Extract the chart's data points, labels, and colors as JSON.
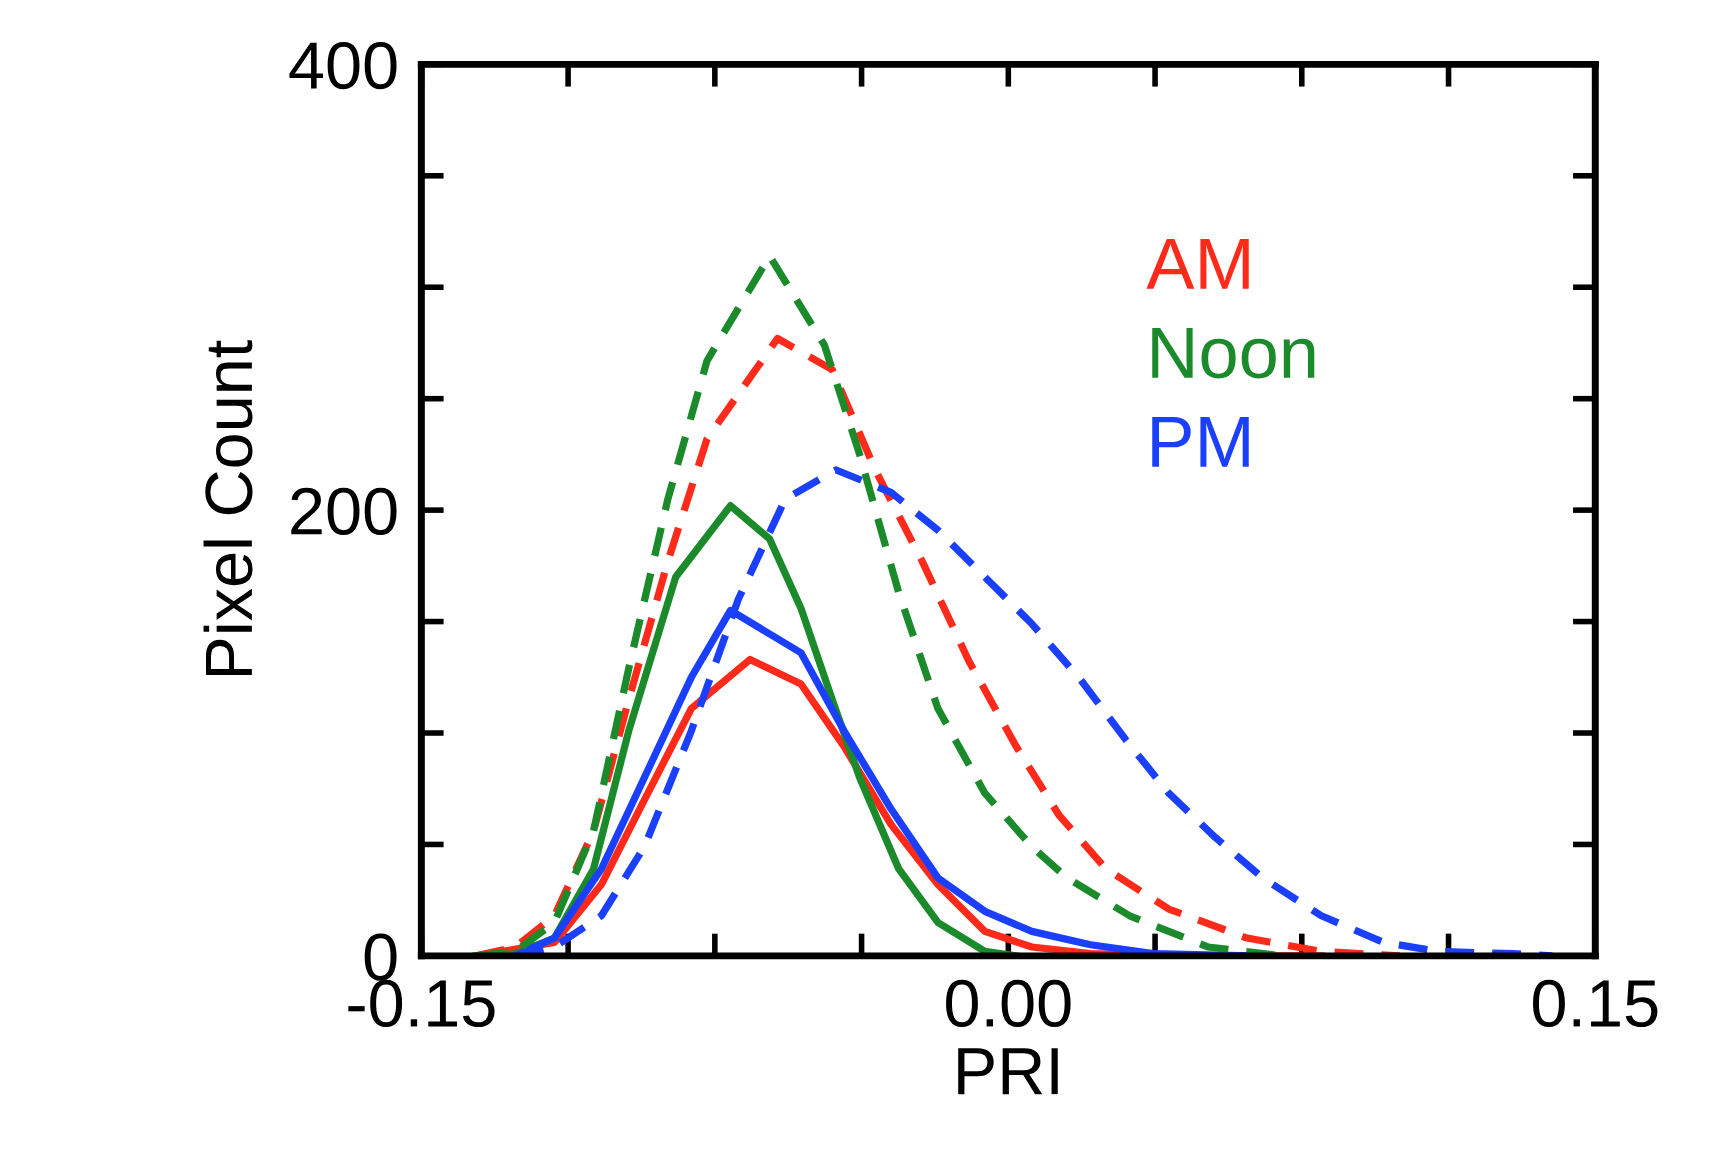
{
  "chart_data": {
    "type": "line",
    "xlabel": "PRI",
    "ylabel": "Pixel Count",
    "legend": "top right",
    "grid": false,
    "xlim": [
      -0.15,
      0.15
    ],
    "ylim": [
      0,
      400
    ],
    "xticks": [
      {
        "value": -0.15,
        "label": "-0.15"
      },
      {
        "value": -0.1125,
        "label": null
      },
      {
        "value": -0.075,
        "label": null
      },
      {
        "value": -0.0375,
        "label": null
      },
      {
        "value": 0,
        "label": "0.00"
      },
      {
        "value": 0.0375,
        "label": null
      },
      {
        "value": 0.075,
        "label": null
      },
      {
        "value": 0.1125,
        "label": null
      },
      {
        "value": 0.15,
        "label": "0.15"
      }
    ],
    "yticks": [
      0,
      {
        "value": 50,
        "label": null
      },
      {
        "value": 100,
        "label": null
      },
      {
        "value": 150,
        "label": null
      },
      200,
      {
        "value": 250,
        "label": null
      },
      {
        "value": 300,
        "label": null
      },
      {
        "value": 350,
        "label": null
      },
      400
    ],
    "series": [
      {
        "color": "#ff2a1a",
        "line_style": "solid",
        "x": [
          -0.136,
          -0.116,
          -0.104,
          -0.093,
          -0.081,
          -0.066,
          -0.053,
          -0.042,
          -0.03,
          -0.018,
          -0.006,
          0.006,
          0.021,
          0.041,
          0.08
        ],
        "values": [
          0,
          6,
          32,
          70,
          111,
          133,
          122,
          94,
          59,
          32,
          11,
          4,
          1,
          0,
          0
        ]
      },
      {
        "color": "#1a8a2a",
        "line_style": "solid",
        "x": [
          -0.136,
          -0.126,
          -0.116,
          -0.106,
          -0.097,
          -0.085,
          -0.071,
          -0.061,
          -0.053,
          -0.045,
          -0.038,
          -0.028,
          -0.018,
          -0.006,
          0.002
        ],
        "values": [
          0,
          1,
          8,
          39,
          101,
          170,
          202,
          187,
          156,
          115,
          80,
          39,
          15,
          2,
          0
        ]
      },
      {
        "color": "#1a3fff",
        "line_style": "solid",
        "x": [
          -0.126,
          -0.116,
          -0.104,
          -0.093,
          -0.081,
          -0.071,
          -0.053,
          -0.042,
          -0.03,
          -0.018,
          -0.006,
          0.006,
          0.021,
          0.037,
          0.061
        ],
        "values": [
          0,
          8,
          39,
          80,
          125,
          155,
          136,
          101,
          66,
          35,
          20,
          11,
          5,
          1,
          0
        ]
      },
      {
        "name": "AM",
        "color": "#ff2a1a",
        "line_style": "dashed",
        "x": [
          -0.136,
          -0.126,
          -0.116,
          -0.106,
          -0.097,
          -0.087,
          -0.077,
          -0.059,
          -0.045,
          -0.034,
          -0.022,
          -0.01,
          0.002,
          0.013,
          0.025,
          0.041,
          0.061,
          0.08,
          0.1
        ],
        "values": [
          0,
          4,
          18,
          56,
          115,
          177,
          232,
          277,
          263,
          218,
          177,
          132,
          94,
          63,
          39,
          21,
          8,
          2,
          0
        ]
      },
      {
        "name": "Noon",
        "color": "#1a8a2a",
        "line_style": "dashed",
        "x": [
          -0.136,
          -0.126,
          -0.116,
          -0.106,
          -0.097,
          -0.087,
          -0.077,
          -0.061,
          -0.047,
          -0.038,
          -0.028,
          -0.018,
          -0.006,
          0.006,
          0.015,
          0.031,
          0.051,
          0.07
        ],
        "values": [
          0,
          2,
          15,
          56,
          129,
          205,
          267,
          314,
          274,
          225,
          163,
          111,
          73,
          49,
          35,
          18,
          4,
          0
        ]
      },
      {
        "name": "PM",
        "color": "#1a3fff",
        "line_style": "dashed",
        "x": [
          -0.126,
          -0.116,
          -0.104,
          -0.093,
          -0.081,
          -0.069,
          -0.057,
          -0.044,
          -0.03,
          -0.018,
          -0.006,
          0.006,
          0.018,
          0.03,
          0.041,
          0.053,
          0.065,
          0.08,
          0.096,
          0.11,
          0.129,
          0.139
        ],
        "values": [
          0,
          4,
          18,
          49,
          101,
          160,
          205,
          218,
          208,
          191,
          170,
          149,
          125,
          97,
          73,
          53,
          35,
          18,
          6,
          2,
          1,
          0
        ]
      }
    ]
  }
}
